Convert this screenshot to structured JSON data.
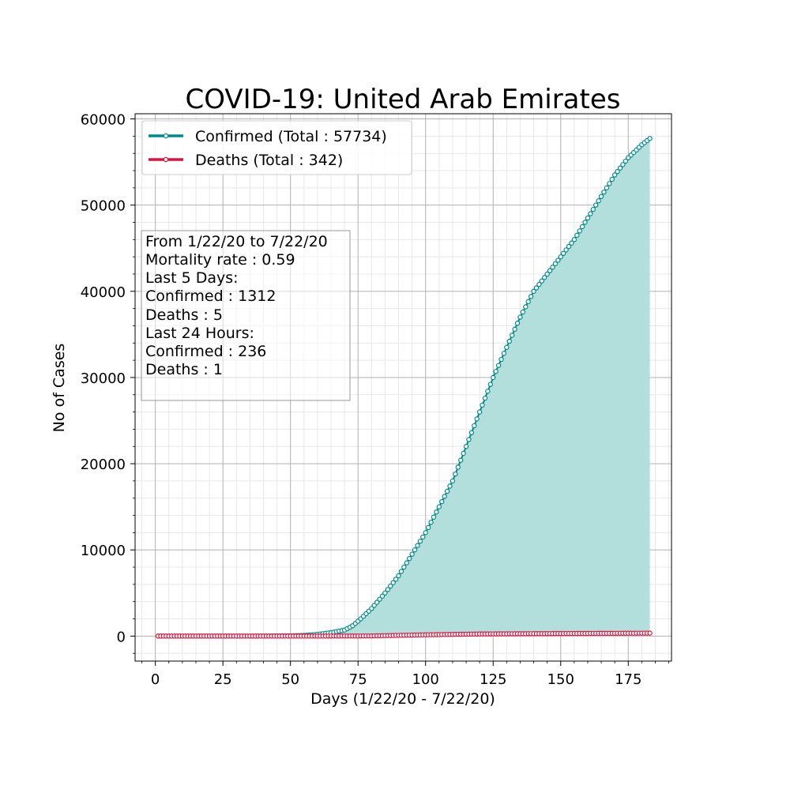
{
  "chart_data": {
    "type": "line",
    "title": "COVID-19: United Arab Emirates",
    "xlabel": "Days (1/22/20 - 7/22/20)",
    "ylabel": "No of Cases",
    "xlim": [
      -7.5,
      191
    ],
    "ylim": [
      -2900,
      60600
    ],
    "x_ticks": [
      0,
      25,
      50,
      75,
      100,
      125,
      150,
      175
    ],
    "y_ticks": [
      0,
      10000,
      20000,
      30000,
      40000,
      50000,
      60000
    ],
    "x_tick_labels": [
      "0",
      "25",
      "50",
      "75",
      "100",
      "125",
      "150",
      "175"
    ],
    "y_tick_labels": [
      "0",
      "10000",
      "20000",
      "30000",
      "40000",
      "50000",
      "60000"
    ],
    "grid": true,
    "minor_grid": true,
    "legend_position": "top-left",
    "x_range": [
      1,
      183
    ],
    "series": [
      {
        "name": "Confirmed (Total : 57734)",
        "color": "#008b8b",
        "fill_color": "#b2dfdb",
        "knots": [
          [
            1,
            0
          ],
          [
            35,
            0
          ],
          [
            50,
            40
          ],
          [
            55,
            80
          ],
          [
            60,
            200
          ],
          [
            65,
            400
          ],
          [
            70,
            700
          ],
          [
            73,
            1200
          ],
          [
            76,
            2000
          ],
          [
            80,
            3200
          ],
          [
            85,
            5000
          ],
          [
            90,
            7000
          ],
          [
            95,
            9500
          ],
          [
            100,
            12000
          ],
          [
            105,
            15000
          ],
          [
            110,
            18000
          ],
          [
            115,
            22000
          ],
          [
            120,
            26000
          ],
          [
            125,
            30000
          ],
          [
            130,
            33500
          ],
          [
            135,
            37000
          ],
          [
            140,
            40000
          ],
          [
            145,
            42000
          ],
          [
            150,
            44000
          ],
          [
            155,
            46000
          ],
          [
            160,
            48500
          ],
          [
            165,
            51000
          ],
          [
            170,
            53500
          ],
          [
            175,
            55500
          ],
          [
            180,
            57000
          ],
          [
            183,
            57734
          ]
        ]
      },
      {
        "name": "Deaths (Total : 342)",
        "color": "#dc143c",
        "knots": [
          [
            1,
            0
          ],
          [
            60,
            0
          ],
          [
            80,
            20
          ],
          [
            100,
            150
          ],
          [
            120,
            250
          ],
          [
            150,
            300
          ],
          [
            183,
            342
          ]
        ]
      }
    ]
  },
  "annotation": {
    "lines": [
      "From 1/22/20 to 7/22/20",
      "Mortality rate : 0.59",
      "Last 5 Days:",
      "Confirmed : 1312",
      "Deaths : 5",
      "Last 24 Hours:",
      "Confirmed : 236",
      "Deaths : 1"
    ]
  }
}
